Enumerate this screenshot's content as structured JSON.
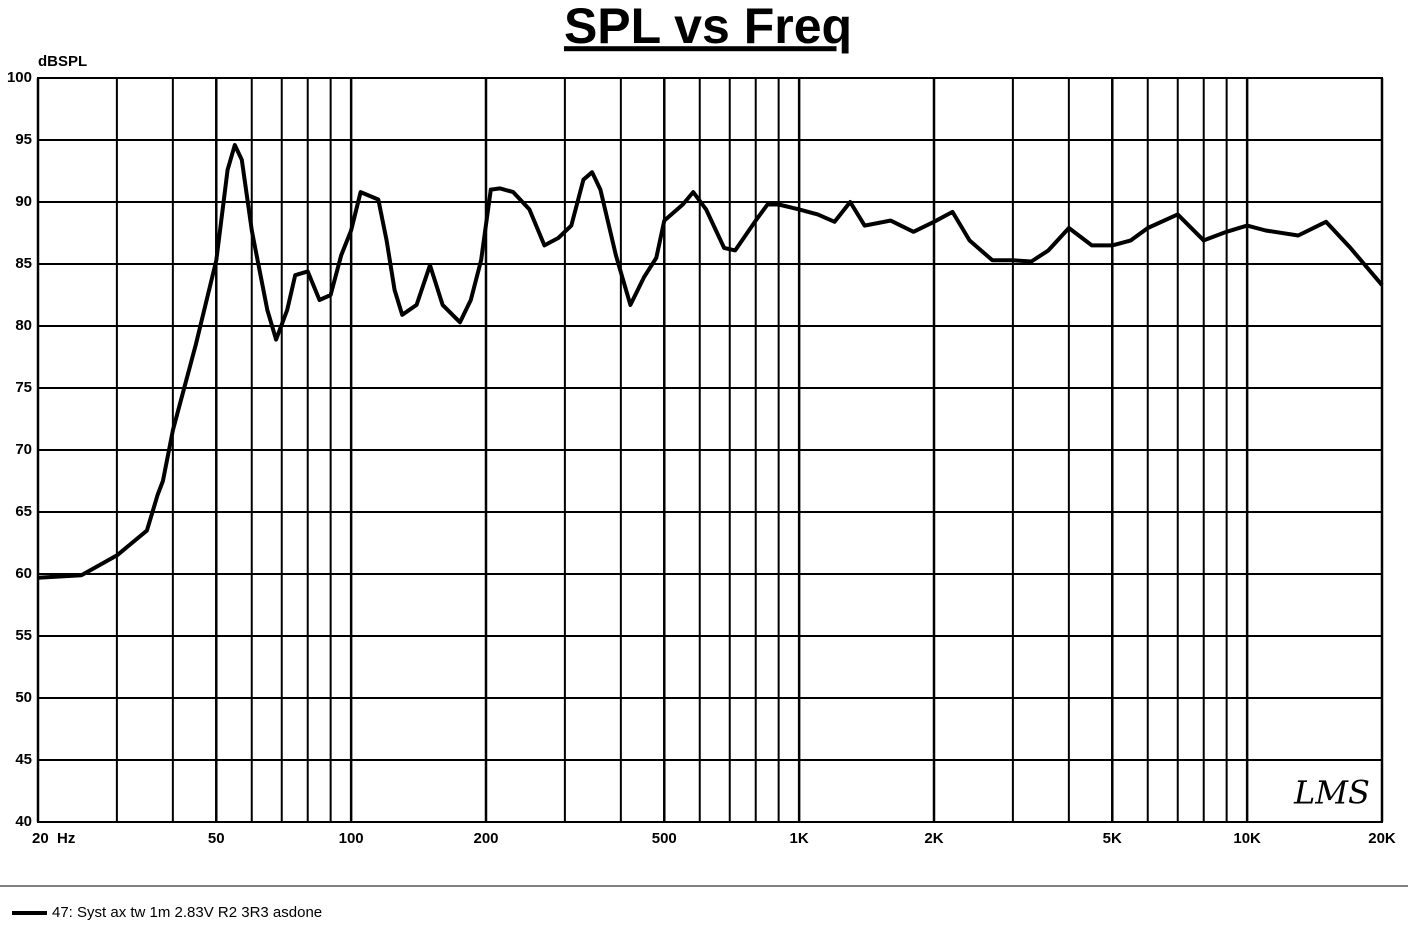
{
  "chart_data": {
    "type": "line",
    "title": "SPL vs Freq",
    "y_label": "dBSPL",
    "x_log": true,
    "x": [
      20,
      25,
      30,
      35,
      37,
      38,
      40,
      45,
      50,
      53,
      55,
      57,
      60,
      65,
      68,
      72,
      75,
      80,
      85,
      90,
      95,
      100,
      105,
      115,
      120,
      125,
      130,
      140,
      150,
      160,
      175,
      185,
      195,
      205,
      215,
      230,
      250,
      270,
      290,
      310,
      330,
      345,
      360,
      390,
      420,
      450,
      480,
      500,
      550,
      580,
      620,
      680,
      720,
      800,
      850,
      900,
      1000,
      1100,
      1200,
      1300,
      1400,
      1600,
      1800,
      2000,
      2200,
      2400,
      2700,
      3000,
      3300,
      3600,
      4000,
      4500,
      5000,
      5500,
      6000,
      7000,
      8000,
      9000,
      10000,
      11000,
      13000,
      15000,
      17000,
      20000
    ],
    "series": [
      {
        "name": "47: Syst ax tw 1m 2.83V R2 3R3 asdone",
        "color": "#000000",
        "values": [
          59.7,
          59.9,
          61.5,
          63.5,
          66.4,
          67.5,
          71.6,
          78.5,
          85.3,
          92.6,
          94.6,
          93.4,
          87.7,
          81.3,
          78.9,
          81.3,
          84.1,
          84.4,
          82.1,
          82.5,
          85.7,
          87.7,
          90.8,
          90.2,
          86.9,
          82.9,
          80.9,
          81.7,
          84.9,
          81.7,
          80.3,
          82.1,
          85.3,
          91.0,
          91.1,
          90.8,
          89.4,
          86.5,
          87.1,
          88.1,
          91.8,
          92.4,
          91.0,
          85.7,
          81.7,
          83.9,
          85.5,
          88.5,
          89.8,
          90.8,
          89.4,
          86.3,
          86.1,
          88.5,
          89.8,
          89.8,
          89.4,
          89.0,
          88.4,
          90.0,
          88.1,
          88.5,
          87.6,
          88.4,
          89.2,
          86.9,
          85.3,
          85.3,
          85.2,
          86.1,
          87.9,
          86.5,
          86.5,
          86.9,
          87.9,
          89.0,
          86.9,
          87.6,
          88.1,
          87.7,
          87.3,
          88.4,
          86.3,
          83.3
        ]
      }
    ],
    "xlim": [
      20,
      20000
    ],
    "xticks": [
      {
        "value": 20,
        "label": "20  Hz"
      },
      50,
      100,
      200,
      500,
      {
        "value": 1000,
        "label": "1K"
      },
      {
        "value": 2000,
        "label": "2K"
      },
      {
        "value": 5000,
        "label": "5K"
      },
      {
        "value": 10000,
        "label": "10K"
      },
      {
        "value": 20000,
        "label": "20K"
      }
    ],
    "xgrid": [
      30,
      40,
      60,
      70,
      80,
      90,
      300,
      400,
      600,
      700,
      800,
      900,
      3000,
      4000,
      6000,
      7000,
      8000,
      9000
    ],
    "ylim": [
      40,
      100
    ],
    "yticks": [
      40,
      45,
      50,
      55,
      60,
      65,
      70,
      75,
      80,
      85,
      90,
      95,
      100
    ],
    "grid": true,
    "watermark": "LMS"
  }
}
